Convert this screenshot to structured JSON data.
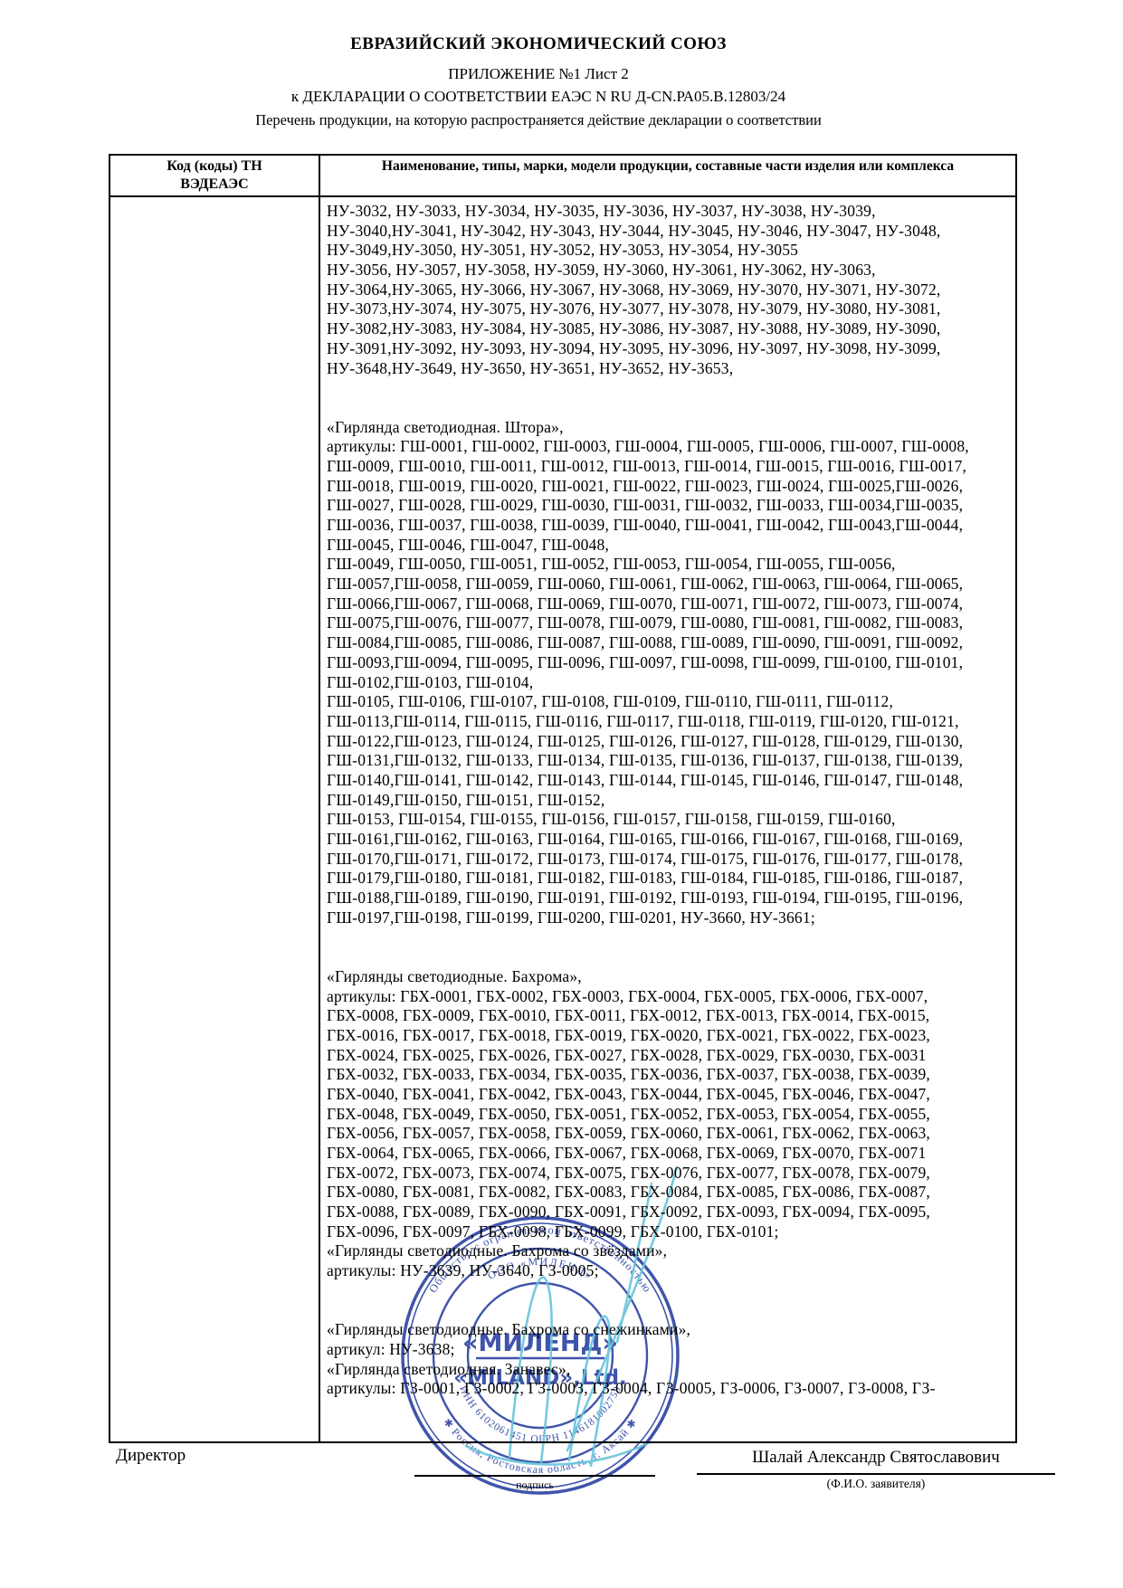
{
  "document": {
    "title": "ЕВРАЗИЙСКИЙ ЭКОНОМИЧЕСКИЙ СОЮЗ",
    "subtitle1": "ПРИЛОЖЕНИЕ №1 Лист 2",
    "subtitle2": "к ДЕКЛАРАЦИИ О СООТВЕТСТВИИ ЕАЭС N RU Д-CN.РА05.В.12803/24",
    "subtitle3": "Перечень продукции, на которую распространяется действие декларации о соответствии"
  },
  "table": {
    "col1_header_line1": "Код (коды) ТН",
    "col1_header_line2": "ВЭДЕАЭС",
    "col2_header": "Наименование, типы, марки, модели продукции, составные части изделия или комплекса",
    "lines": [
      "НУ-3032, НУ-3033, НУ-3034, НУ-3035, НУ-3036, НУ-3037, НУ-3038, НУ-3039,",
      "НУ-3040,НУ-3041, НУ-3042, НУ-3043, НУ-3044, НУ-3045, НУ-3046, НУ-3047, НУ-3048,",
      "НУ-3049,НУ-3050, НУ-3051, НУ-3052, НУ-3053, НУ-3054, НУ-3055",
      "НУ-3056, НУ-3057, НУ-3058, НУ-3059, НУ-3060, НУ-3061, НУ-3062, НУ-3063,",
      "НУ-3064,НУ-3065, НУ-3066, НУ-3067, НУ-3068, НУ-3069, НУ-3070, НУ-3071, НУ-3072,",
      "НУ-3073,НУ-3074, НУ-3075, НУ-3076, НУ-3077, НУ-3078, НУ-3079, НУ-3080, НУ-3081,",
      "НУ-3082,НУ-3083, НУ-3084, НУ-3085, НУ-3086, НУ-3087, НУ-3088, НУ-3089, НУ-3090,",
      "НУ-3091,НУ-3092, НУ-3093, НУ-3094, НУ-3095, НУ-3096, НУ-3097, НУ-3098, НУ-3099,",
      "НУ-3648,НУ-3649, НУ-3650, НУ-3651, НУ-3652, НУ-3653,",
      "",
      "",
      "«Гирлянда светодиодная. Штора»,",
      "артикулы: ГШ-0001, ГШ-0002, ГШ-0003, ГШ-0004, ГШ-0005, ГШ-0006, ГШ-0007, ГШ-0008,",
      "ГШ-0009, ГШ-0010, ГШ-0011, ГШ-0012, ГШ-0013, ГШ-0014, ГШ-0015, ГШ-0016, ГШ-0017,",
      "ГШ-0018, ГШ-0019, ГШ-0020, ГШ-0021, ГШ-0022, ГШ-0023, ГШ-0024, ГШ-0025,ГШ-0026,",
      "ГШ-0027, ГШ-0028, ГШ-0029, ГШ-0030, ГШ-0031, ГШ-0032, ГШ-0033, ГШ-0034,ГШ-0035,",
      "ГШ-0036, ГШ-0037, ГШ-0038, ГШ-0039, ГШ-0040, ГШ-0041, ГШ-0042, ГШ-0043,ГШ-0044,",
      "ГШ-0045, ГШ-0046, ГШ-0047, ГШ-0048,",
      "ГШ-0049, ГШ-0050, ГШ-0051, ГШ-0052, ГШ-0053, ГШ-0054, ГШ-0055, ГШ-0056,",
      "ГШ-0057,ГШ-0058, ГШ-0059, ГШ-0060, ГШ-0061, ГШ-0062, ГШ-0063, ГШ-0064, ГШ-0065,",
      "ГШ-0066,ГШ-0067, ГШ-0068, ГШ-0069, ГШ-0070, ГШ-0071, ГШ-0072, ГШ-0073, ГШ-0074,",
      "ГШ-0075,ГШ-0076, ГШ-0077, ГШ-0078, ГШ-0079, ГШ-0080, ГШ-0081, ГШ-0082, ГШ-0083,",
      "ГШ-0084,ГШ-0085, ГШ-0086, ГШ-0087, ГШ-0088, ГШ-0089, ГШ-0090, ГШ-0091, ГШ-0092,",
      "ГШ-0093,ГШ-0094, ГШ-0095, ГШ-0096, ГШ-0097, ГШ-0098, ГШ-0099, ГШ-0100, ГШ-0101,",
      "ГШ-0102,ГШ-0103, ГШ-0104,",
      "ГШ-0105, ГШ-0106, ГШ-0107, ГШ-0108, ГШ-0109, ГШ-0110, ГШ-0111, ГШ-0112,",
      "ГШ-0113,ГШ-0114, ГШ-0115, ГШ-0116, ГШ-0117, ГШ-0118, ГШ-0119, ГШ-0120, ГШ-0121,",
      "ГШ-0122,ГШ-0123, ГШ-0124, ГШ-0125, ГШ-0126, ГШ-0127, ГШ-0128, ГШ-0129, ГШ-0130,",
      "ГШ-0131,ГШ-0132, ГШ-0133, ГШ-0134, ГШ-0135, ГШ-0136, ГШ-0137, ГШ-0138, ГШ-0139,",
      "ГШ-0140,ГШ-0141, ГШ-0142, ГШ-0143, ГШ-0144, ГШ-0145, ГШ-0146, ГШ-0147, ГШ-0148,",
      "ГШ-0149,ГШ-0150, ГШ-0151, ГШ-0152,",
      "ГШ-0153, ГШ-0154, ГШ-0155, ГШ-0156, ГШ-0157, ГШ-0158, ГШ-0159, ГШ-0160,",
      "ГШ-0161,ГШ-0162, ГШ-0163, ГШ-0164, ГШ-0165, ГШ-0166, ГШ-0167, ГШ-0168, ГШ-0169,",
      "ГШ-0170,ГШ-0171, ГШ-0172, ГШ-0173, ГШ-0174, ГШ-0175, ГШ-0176, ГШ-0177, ГШ-0178,",
      "ГШ-0179,ГШ-0180, ГШ-0181, ГШ-0182, ГШ-0183, ГШ-0184, ГШ-0185, ГШ-0186, ГШ-0187,",
      "ГШ-0188,ГШ-0189, ГШ-0190, ГШ-0191, ГШ-0192, ГШ-0193, ГШ-0194, ГШ-0195, ГШ-0196,",
      "ГШ-0197,ГШ-0198, ГШ-0199, ГШ-0200, ГШ-0201, НУ-3660, НУ-3661;",
      "",
      "",
      "«Гирлянды светодиодные. Бахрома»,",
      "артикулы: ГБХ-0001, ГБХ-0002, ГБХ-0003, ГБХ-0004, ГБХ-0005, ГБХ-0006, ГБХ-0007,",
      "ГБХ-0008, ГБХ-0009, ГБХ-0010, ГБХ-0011, ГБХ-0012, ГБХ-0013, ГБХ-0014, ГБХ-0015,",
      "ГБХ-0016, ГБХ-0017, ГБХ-0018, ГБХ-0019, ГБХ-0020, ГБХ-0021, ГБХ-0022, ГБХ-0023,",
      "ГБХ-0024, ГБХ-0025, ГБХ-0026, ГБХ-0027, ГБХ-0028, ГБХ-0029, ГБХ-0030, ГБХ-0031",
      "ГБХ-0032, ГБХ-0033, ГБХ-0034, ГБХ-0035, ГБХ-0036, ГБХ-0037, ГБХ-0038, ГБХ-0039,",
      "ГБХ-0040, ГБХ-0041, ГБХ-0042, ГБХ-0043, ГБХ-0044, ГБХ-0045, ГБХ-0046, ГБХ-0047,",
      "ГБХ-0048, ГБХ-0049, ГБХ-0050, ГБХ-0051, ГБХ-0052, ГБХ-0053, ГБХ-0054, ГБХ-0055,",
      "ГБХ-0056, ГБХ-0057, ГБХ-0058, ГБХ-0059, ГБХ-0060, ГБХ-0061, ГБХ-0062, ГБХ-0063,",
      "ГБХ-0064, ГБХ-0065, ГБХ-0066, ГБХ-0067, ГБХ-0068, ГБХ-0069, ГБХ-0070, ГБХ-0071",
      "ГБХ-0072, ГБХ-0073, ГБХ-0074, ГБХ-0075, ГБХ-0076, ГБХ-0077, ГБХ-0078, ГБХ-0079,",
      "ГБХ-0080, ГБХ-0081, ГБХ-0082, ГБХ-0083, ГБХ-0084, ГБХ-0085, ГБХ-0086, ГБХ-0087,",
      "ГБХ-0088, ГБХ-0089, ГБХ-0090, ГБХ-0091, ГБХ-0092, ГБХ-0093, ГБХ-0094, ГБХ-0095,",
      "ГБХ-0096, ГБХ-0097, ГБХ-0098, ГБХ-0099, ГБХ-0100, ГБХ-0101;",
      "«Гирлянды светодиодные. Бахрома со звёздами»,",
      "артикулы: НУ-3639, НУ-3640, ГЗ-0005;",
      "",
      "",
      "«Гирлянды светодиодные. Бахрома со снежинками»,",
      "артикул: НУ-3638;",
      "«Гирлянда светодиодная. Занавес»,",
      "артикулы: ГЗ-0001, ГЗ-0002, ГЗ-0003, ГЗ-0004, ГЗ-0005, ГЗ-0006, ГЗ-0007, ГЗ-0008, ГЗ-"
    ]
  },
  "footer": {
    "role": "Директор",
    "signature_caption": "подпись",
    "name": "Шалай Александр Святославович",
    "name_caption": "(Ф.И.О. заявителя)"
  },
  "stamp": {
    "outer_top": "Общество с ограниченной ответственностью",
    "outer_bottom": "✱ Россия, Ростовская область, г. Аксай ✱",
    "inner_top": "ООО «МИЛЕНД»",
    "inner_bottom": "ИНН 6102061451 ОГРН 1146181002758",
    "center_line1": "«МИЛЕНД»",
    "center_line2": "«MILAND»,Ltd.",
    "ink_color": "#2e45a4",
    "signature_color": "#5bbfd8"
  }
}
